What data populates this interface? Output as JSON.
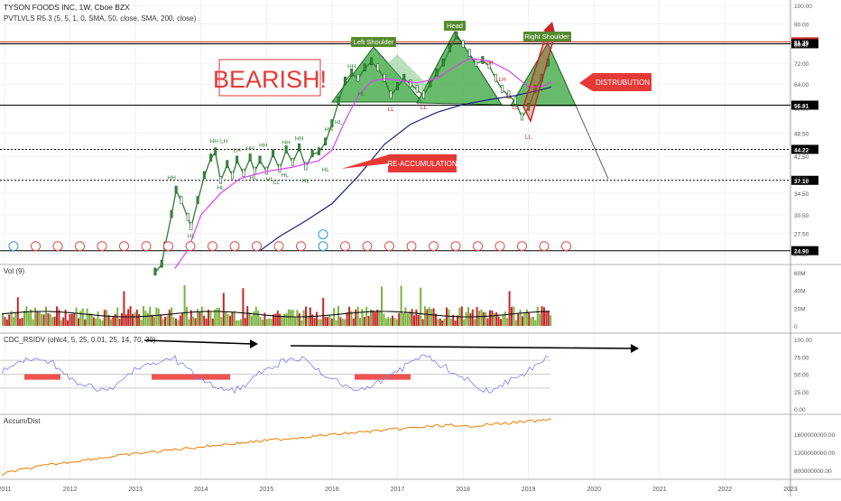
{
  "symbol": {
    "name": "TYSON FOODS INC",
    "interval": "1W",
    "exchange": "Cboe BZX",
    "indicator": "PVTLVLS R5.3 (5, 5, 1, 0, SMA, 50, close, SMA, 200, close)"
  },
  "panes": {
    "volume": {
      "title": "Vol (9)",
      "ticks": [
        "60M",
        "40M",
        "20M",
        "0"
      ]
    },
    "rsi": {
      "title": "CDC_RSIDV (ohlc4, 5, 25, 0.01, 25, 14, 70, 30)",
      "ticks": [
        "100.00",
        "75.00",
        "50.00",
        "25.00",
        "0.00"
      ]
    },
    "accdist": {
      "title": "Accum/Dist",
      "ticks": [
        "1600000000.00",
        "1200000000.00",
        "800000000.00"
      ]
    }
  },
  "annotations": {
    "bearish": "BEARISH!",
    "distribution": "DISTRUBUTION",
    "reaccumulation": "RE-ACCUMULATION",
    "left_shoulder": "Left Shoulder",
    "head": "Head",
    "right_shoulder": "Right Shoulder"
  },
  "pivots": [
    {
      "label": "HH",
      "year": 2013.55,
      "price": 37.2,
      "color": "#2e7d32"
    },
    {
      "label": "HL",
      "year": 2013.85,
      "price": 26.8,
      "color": "#2e7d32"
    },
    {
      "label": "HH",
      "year": 2014.2,
      "price": 45.8,
      "color": "#2e7d32"
    },
    {
      "label": "LH",
      "year": 2014.35,
      "price": 45.8,
      "color": "#2e7d32"
    },
    {
      "label": "HL",
      "year": 2014.3,
      "price": 35.2,
      "color": "#2e7d32"
    },
    {
      "label": "LH",
      "year": 2014.55,
      "price": 43.5,
      "color": "#2e7d32"
    },
    {
      "label": "HH",
      "year": 2014.75,
      "price": 44.0,
      "color": "#2e7d32"
    },
    {
      "label": "HL",
      "year": 2014.8,
      "price": 37.2,
      "color": "#2e7d32"
    },
    {
      "label": "HH",
      "year": 2014.95,
      "price": 44.8,
      "color": "#2e7d32"
    },
    {
      "label": "HL",
      "year": 2015.05,
      "price": 37.0,
      "color": "#2e7d32"
    },
    {
      "label": "LL",
      "year": 2015.15,
      "price": 36.3,
      "color": "#2e7d32"
    },
    {
      "label": "HH",
      "year": 2015.3,
      "price": 45.5,
      "color": "#2e7d32"
    },
    {
      "label": "HL",
      "year": 2015.28,
      "price": 37.8,
      "color": "#2e7d32"
    },
    {
      "label": "HH",
      "year": 2015.5,
      "price": 46.5,
      "color": "#2e7d32"
    },
    {
      "label": "HL",
      "year": 2015.6,
      "price": 36.6,
      "color": "#2e7d32"
    },
    {
      "label": "HH",
      "year": 2015.95,
      "price": 49.0,
      "color": "#2e7d32"
    },
    {
      "label": "HL",
      "year": 2015.9,
      "price": 39.0,
      "color": "#2e7d32"
    },
    {
      "label": "HH",
      "year": 2016.3,
      "price": 70.0,
      "color": "#2e7d32"
    },
    {
      "label": "HL",
      "year": 2016.1,
      "price": 51.0,
      "color": "#2e7d32"
    },
    {
      "label": "HL",
      "year": 2016.45,
      "price": 60.0,
      "color": "#2e7d32"
    },
    {
      "label": "LL",
      "year": 2016.9,
      "price": 55.0,
      "color": "#c62828"
    },
    {
      "label": "LL",
      "year": 2017.4,
      "price": 55.5,
      "color": "#c62828"
    },
    {
      "label": "LL",
      "year": 2018.8,
      "price": 55.5,
      "color": "#c62828"
    },
    {
      "label": "LH",
      "year": 2018.4,
      "price": 71.5,
      "color": "#c62828"
    },
    {
      "label": "LH",
      "year": 2018.6,
      "price": 65.0,
      "color": "#c62828"
    },
    {
      "label": "LL",
      "year": 2018.7,
      "price": 59.0,
      "color": "#c62828"
    },
    {
      "label": "LL",
      "year": 2019.0,
      "price": 47.0,
      "color": "#c62828"
    }
  ],
  "chart_data": {
    "type": "line",
    "x_axis": {
      "ticks": [
        "2011",
        "2012",
        "2013",
        "2014",
        "2015",
        "2016",
        "2017",
        "2018",
        "2019",
        "2020",
        "2021",
        "2022",
        "2023"
      ]
    },
    "price_axis": {
      "scale": "log",
      "ticks": [
        "100.00",
        "90.00",
        "80.00",
        "72.00",
        "64.00",
        "56.00",
        "48.50",
        "42.50",
        "37.50",
        "34.50",
        "30.50",
        "27.50",
        "24.50"
      ]
    },
    "levels": [
      {
        "value": 81.35,
        "label": "81.35",
        "color": "#c62828",
        "style": "solid"
      },
      {
        "value": 80.47,
        "label": "80.47",
        "color": "#000000",
        "style": "solid"
      },
      {
        "value": 56.81,
        "label": "56.81",
        "color": "#000000",
        "style": "solid"
      },
      {
        "value": 44.22,
        "label": "44.22",
        "color": "#000000",
        "style": "dashed"
      },
      {
        "value": 37.1,
        "label": "37.10",
        "color": "#000000",
        "style": "dashed"
      },
      {
        "value": 24.9,
        "label": "24.90",
        "color": "#000000",
        "style": "solid"
      }
    ],
    "series": [
      {
        "name": "TYSON FOODS INC",
        "color": "#2e7d32",
        "points": [
          [
            2013.3,
            22.0
          ],
          [
            2013.4,
            23.0
          ],
          [
            2013.45,
            25.5
          ],
          [
            2013.55,
            30.5
          ],
          [
            2013.62,
            35.0
          ],
          [
            2013.7,
            33.0
          ],
          [
            2013.8,
            30.0
          ],
          [
            2013.85,
            28.5
          ],
          [
            2013.95,
            33.0
          ],
          [
            2014.05,
            38.0
          ],
          [
            2014.15,
            42.0
          ],
          [
            2014.22,
            43.5
          ],
          [
            2014.3,
            37.0
          ],
          [
            2014.4,
            40.5
          ],
          [
            2014.48,
            38.0
          ],
          [
            2014.55,
            41.5
          ],
          [
            2014.65,
            38.5
          ],
          [
            2014.75,
            42.0
          ],
          [
            2014.82,
            39.0
          ],
          [
            2014.9,
            41.5
          ],
          [
            2015.0,
            39.0
          ],
          [
            2015.1,
            43.0
          ],
          [
            2015.2,
            39.5
          ],
          [
            2015.3,
            44.0
          ],
          [
            2015.4,
            41.0
          ],
          [
            2015.5,
            44.5
          ],
          [
            2015.6,
            40.0
          ],
          [
            2015.7,
            43.0
          ],
          [
            2015.8,
            43.5
          ],
          [
            2015.9,
            46.0
          ],
          [
            2016.0,
            51.0
          ],
          [
            2016.1,
            58.0
          ],
          [
            2016.2,
            65.0
          ],
          [
            2016.3,
            68.0
          ],
          [
            2016.4,
            66.0
          ],
          [
            2016.5,
            70.0
          ],
          [
            2016.6,
            72.5
          ],
          [
            2016.7,
            70.0
          ],
          [
            2016.8,
            66.0
          ],
          [
            2016.9,
            60.0
          ],
          [
            2017.0,
            63.0
          ],
          [
            2017.1,
            66.0
          ],
          [
            2017.2,
            64.0
          ],
          [
            2017.3,
            62.0
          ],
          [
            2017.4,
            60.0
          ],
          [
            2017.5,
            64.0
          ],
          [
            2017.6,
            68.0
          ],
          [
            2017.7,
            72.0
          ],
          [
            2017.8,
            78.0
          ],
          [
            2017.9,
            84.0
          ],
          [
            2018.0,
            80.0
          ],
          [
            2018.1,
            76.0
          ],
          [
            2018.2,
            72.0
          ],
          [
            2018.3,
            73.0
          ],
          [
            2018.4,
            71.0
          ],
          [
            2018.5,
            66.0
          ],
          [
            2018.6,
            62.0
          ],
          [
            2018.7,
            60.0
          ],
          [
            2018.8,
            58.0
          ],
          [
            2018.9,
            53.0
          ],
          [
            2019.0,
            56.0
          ],
          [
            2019.1,
            62.0
          ],
          [
            2019.2,
            66.0
          ],
          [
            2019.3,
            72.0
          ]
        ]
      },
      {
        "name": "SMA 50",
        "color": "#e040fb",
        "points": [
          [
            2013.6,
            22.5
          ],
          [
            2013.8,
            25.0
          ],
          [
            2014.0,
            30.5
          ],
          [
            2014.3,
            34.5
          ],
          [
            2014.6,
            37.5
          ],
          [
            2015.0,
            39.0
          ],
          [
            2015.4,
            40.0
          ],
          [
            2015.8,
            41.5
          ],
          [
            2016.0,
            44.0
          ],
          [
            2016.2,
            52.0
          ],
          [
            2016.4,
            60.0
          ],
          [
            2016.6,
            65.0
          ],
          [
            2016.8,
            66.0
          ],
          [
            2017.0,
            65.5
          ],
          [
            2017.3,
            64.5
          ],
          [
            2017.6,
            66.0
          ],
          [
            2017.9,
            71.0
          ],
          [
            2018.1,
            74.0
          ],
          [
            2018.4,
            73.0
          ],
          [
            2018.7,
            69.0
          ],
          [
            2019.0,
            63.0
          ],
          [
            2019.2,
            63.0
          ],
          [
            2019.35,
            65.0
          ]
        ]
      },
      {
        "name": "SMA 200",
        "color": "#1a237e",
        "points": [
          [
            2014.9,
            24.9
          ],
          [
            2015.2,
            27.0
          ],
          [
            2015.6,
            29.5
          ],
          [
            2016.0,
            32.5
          ],
          [
            2016.4,
            38.0
          ],
          [
            2016.8,
            45.5
          ],
          [
            2017.2,
            51.0
          ],
          [
            2017.6,
            54.5
          ],
          [
            2018.0,
            57.0
          ],
          [
            2018.4,
            58.6
          ],
          [
            2018.8,
            60.0
          ],
          [
            2019.2,
            62.0
          ],
          [
            2019.35,
            63.0
          ]
        ]
      }
    ]
  }
}
